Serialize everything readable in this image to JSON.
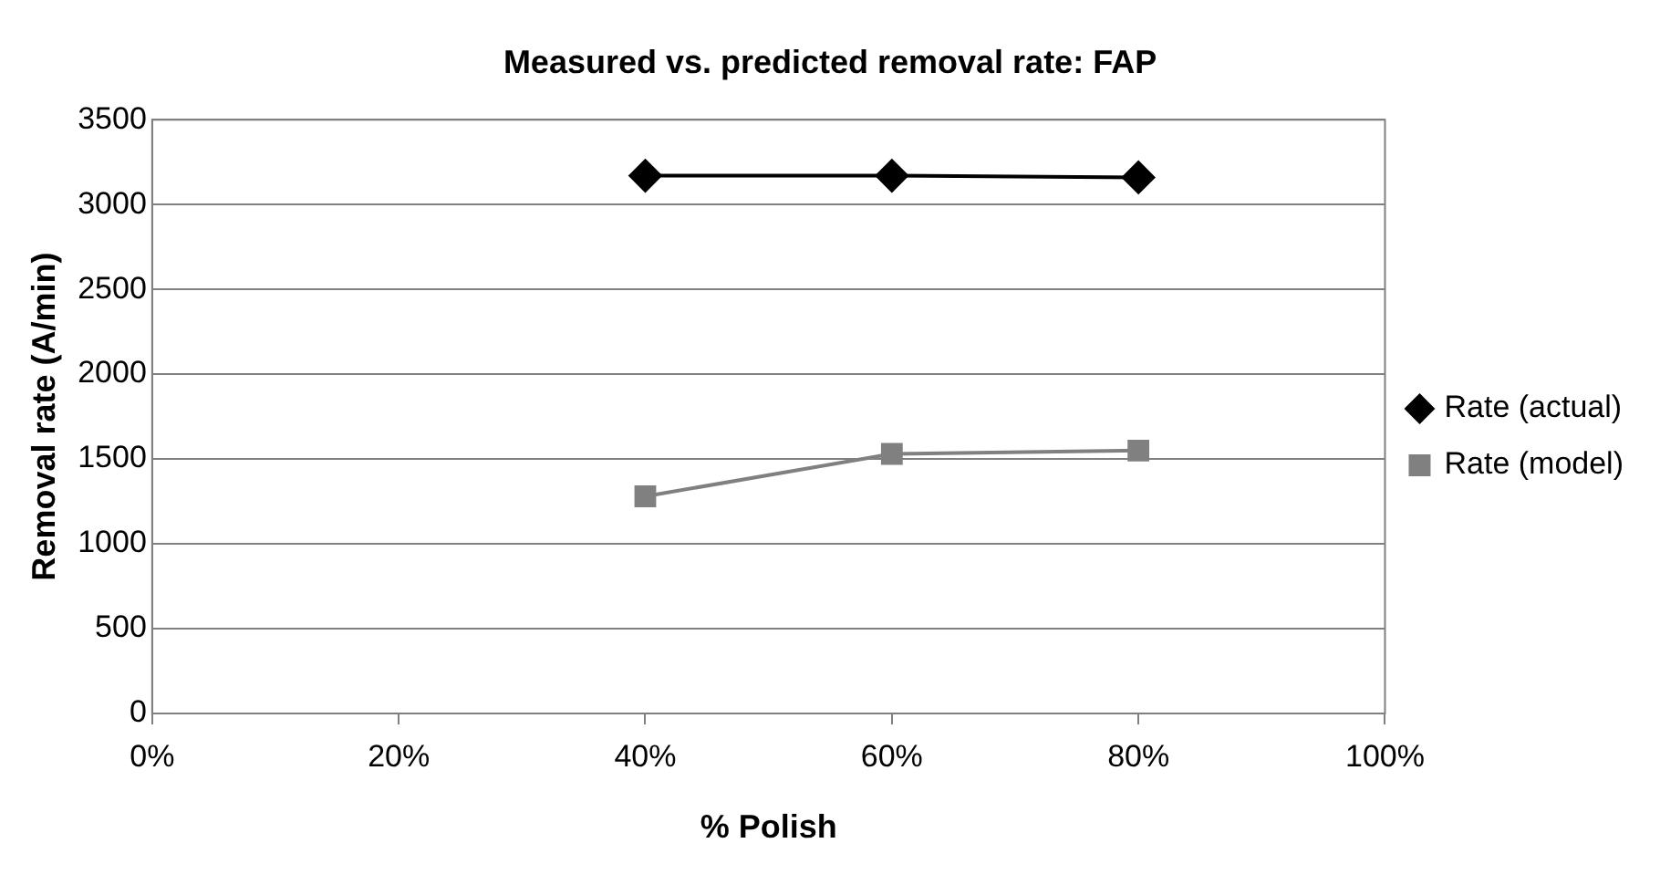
{
  "chart_data": {
    "type": "line",
    "title": "Measured vs. predicted removal rate: FAP",
    "xlabel": "% Polish",
    "ylabel": "Removal rate (A/min)",
    "x": [
      40,
      60,
      80
    ],
    "series": [
      {
        "name": "Rate (actual)",
        "color": "#000000",
        "marker": "diamond",
        "values": [
          3170,
          3170,
          3160
        ]
      },
      {
        "name": "Rate (model)",
        "color": "#808080",
        "marker": "square",
        "values": [
          1280,
          1530,
          1550
        ]
      }
    ],
    "xlim": [
      0,
      100
    ],
    "xticks": [
      {
        "value": 0,
        "label": "0%"
      },
      {
        "value": 20,
        "label": "20%"
      },
      {
        "value": 40,
        "label": "40%"
      },
      {
        "value": 60,
        "label": "60%"
      },
      {
        "value": 80,
        "label": "80%"
      },
      {
        "value": 100,
        "label": "100%"
      }
    ],
    "ylim": [
      0,
      3500
    ],
    "yticks": [
      0,
      500,
      1000,
      1500,
      2000,
      2500,
      3000,
      3500
    ],
    "grid": "y",
    "legend": "right",
    "line_style": "solid"
  }
}
